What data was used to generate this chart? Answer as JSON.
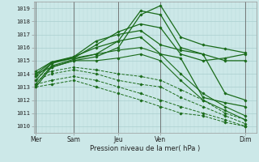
{
  "xlabel": "Pression niveau de la mer( hPa )",
  "bg_color": "#cce8e8",
  "grid_color_h": "#aacfcf",
  "grid_color_v": "#b8d8d8",
  "line_color": "#1a6b1a",
  "ylim": [
    1009.5,
    1019.5
  ],
  "yticks": [
    1010,
    1011,
    1012,
    1013,
    1014,
    1015,
    1016,
    1017,
    1018,
    1019
  ],
  "xlim": [
    0,
    5.0
  ],
  "day_labels": [
    "Mer",
    "Sam",
    "Jeu",
    "Ven",
    "Dim"
  ],
  "day_positions": [
    0.05,
    0.9,
    1.9,
    2.85,
    4.75
  ],
  "series": [
    {
      "x": [
        0.05,
        0.4,
        0.9,
        1.4,
        1.9,
        2.4,
        2.85,
        3.3,
        3.8,
        4.3,
        4.75
      ],
      "y": [
        1013.0,
        1014.5,
        1015.0,
        1015.3,
        1016.0,
        1018.5,
        1019.2,
        1016.8,
        1016.2,
        1015.9,
        1015.6
      ],
      "style": "-",
      "marker": "D",
      "ms": 1.5,
      "lw": 0.9
    },
    {
      "x": [
        0.05,
        0.4,
        0.9,
        1.4,
        1.9,
        2.4,
        2.85,
        3.3,
        3.8,
        4.3,
        4.75
      ],
      "y": [
        1013.2,
        1014.6,
        1015.1,
        1015.5,
        1016.5,
        1018.8,
        1018.5,
        1016.0,
        1015.5,
        1015.0,
        1015.0
      ],
      "style": "-",
      "marker": "D",
      "ms": 1.5,
      "lw": 0.9
    },
    {
      "x": [
        0.05,
        0.4,
        0.9,
        1.4,
        1.9,
        2.4,
        2.85,
        3.3,
        3.8,
        4.3,
        4.75
      ],
      "y": [
        1013.5,
        1014.8,
        1015.2,
        1016.2,
        1017.2,
        1017.8,
        1017.5,
        1015.5,
        1015.0,
        1015.2,
        1015.5
      ],
      "style": "-",
      "marker": "D",
      "ms": 1.5,
      "lw": 0.9
    },
    {
      "x": [
        0.05,
        0.4,
        0.9,
        1.4,
        1.9,
        2.4,
        2.85,
        3.3,
        3.8,
        4.3,
        4.75
      ],
      "y": [
        1013.8,
        1014.8,
        1015.3,
        1016.5,
        1017.0,
        1017.3,
        1016.2,
        1015.8,
        1015.5,
        1012.5,
        1012.0
      ],
      "style": "-",
      "marker": "D",
      "ms": 1.5,
      "lw": 0.9
    },
    {
      "x": [
        0.05,
        0.4,
        0.9,
        1.4,
        1.9,
        2.4,
        2.85,
        3.3,
        3.8,
        4.3,
        4.75
      ],
      "y": [
        1014.0,
        1014.9,
        1015.3,
        1016.0,
        1016.5,
        1016.8,
        1015.5,
        1015.2,
        1012.2,
        1011.8,
        1011.5
      ],
      "style": "-",
      "marker": "D",
      "ms": 1.5,
      "lw": 0.9
    },
    {
      "x": [
        0.05,
        0.4,
        0.9,
        1.4,
        1.9,
        2.4,
        2.85,
        3.3,
        3.8,
        4.3,
        4.75
      ],
      "y": [
        1014.2,
        1014.9,
        1015.2,
        1015.5,
        1015.8,
        1016.0,
        1015.5,
        1014.0,
        1012.5,
        1011.5,
        1010.8
      ],
      "style": "-",
      "marker": "D",
      "ms": 1.5,
      "lw": 0.8
    },
    {
      "x": [
        0.05,
        0.4,
        0.9,
        1.4,
        1.9,
        2.4,
        2.85,
        3.3,
        3.8,
        4.3,
        4.75
      ],
      "y": [
        1014.0,
        1014.5,
        1015.0,
        1015.0,
        1015.2,
        1015.5,
        1015.0,
        1013.5,
        1012.0,
        1011.2,
        1010.5
      ],
      "style": "-",
      "marker": "D",
      "ms": 1.5,
      "lw": 0.8
    },
    {
      "x": [
        0.05,
        0.4,
        0.9,
        1.4,
        1.9,
        2.4,
        2.85,
        3.3,
        3.8,
        4.3,
        4.75
      ],
      "y": [
        1013.8,
        1014.2,
        1014.5,
        1014.3,
        1014.0,
        1013.8,
        1013.5,
        1012.8,
        1012.0,
        1011.0,
        1010.5
      ],
      "style": "--",
      "marker": "D",
      "ms": 1.5,
      "lw": 0.7
    },
    {
      "x": [
        0.05,
        0.4,
        0.9,
        1.4,
        1.9,
        2.4,
        2.85,
        3.3,
        3.8,
        4.3,
        4.75
      ],
      "y": [
        1013.5,
        1014.0,
        1014.3,
        1014.0,
        1013.5,
        1013.2,
        1013.0,
        1012.2,
        1011.5,
        1010.8,
        1010.2
      ],
      "style": "--",
      "marker": "D",
      "ms": 1.5,
      "lw": 0.7
    },
    {
      "x": [
        0.05,
        0.4,
        0.9,
        1.4,
        1.9,
        2.4,
        2.85,
        3.3,
        3.8,
        4.3,
        4.75
      ],
      "y": [
        1013.2,
        1013.5,
        1013.8,
        1013.5,
        1013.0,
        1012.5,
        1012.0,
        1011.5,
        1011.0,
        1010.5,
        1010.0
      ],
      "style": "--",
      "marker": "D",
      "ms": 1.5,
      "lw": 0.7
    },
    {
      "x": [
        0.05,
        0.4,
        0.9,
        1.4,
        1.9,
        2.4,
        2.85,
        3.3,
        3.8,
        4.3,
        4.75
      ],
      "y": [
        1013.0,
        1013.2,
        1013.5,
        1013.0,
        1012.5,
        1012.0,
        1011.5,
        1011.0,
        1010.8,
        1010.3,
        1010.0
      ],
      "style": "--",
      "marker": "D",
      "ms": 1.5,
      "lw": 0.7
    }
  ]
}
